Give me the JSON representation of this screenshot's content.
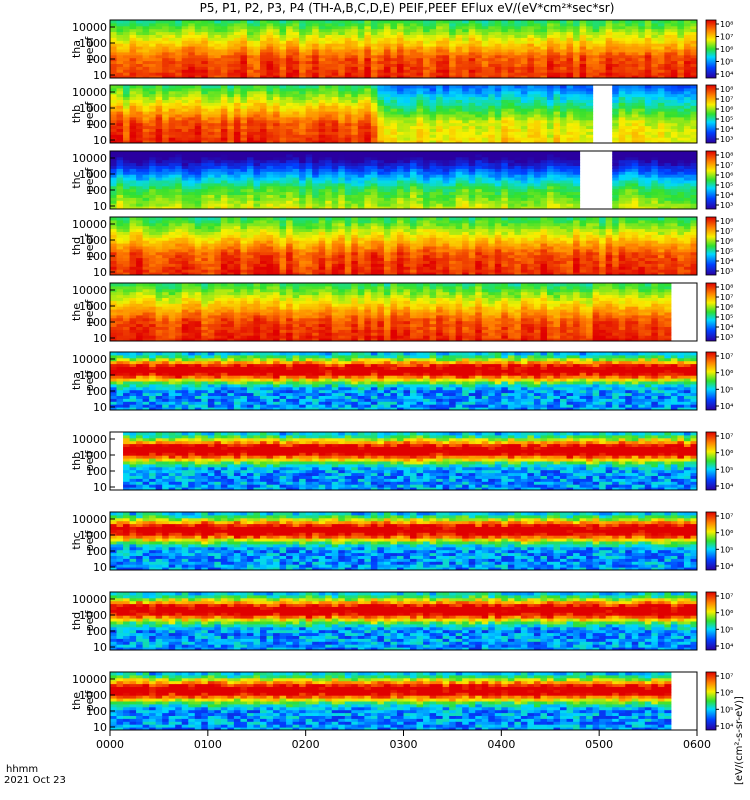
{
  "chart_data": {
    "type": "heatmap",
    "title": "P5, P1, P2, P3, P4 (TH-A,B,C,D,E) PEIF,PEEF EFlux eV/(eV*cm²*sec*sr)",
    "xlabel_top": "hhmm",
    "xlabel_bottom": "2021 Oct 23",
    "x_ticks": [
      "0000",
      "0100",
      "0200",
      "0300",
      "0400",
      "0500",
      "0600"
    ],
    "y_ticks": [
      "10",
      "100",
      "1000",
      "10000"
    ],
    "y_scale": "log",
    "ylim": [
      10,
      20000
    ],
    "xlim": [
      "0000",
      "0600"
    ],
    "colorbar_label": "[eV/(cm²-s-sr-eV)]",
    "colorbar_ticks": [
      "10⁴",
      "10⁵",
      "10⁶",
      "10⁷",
      "10⁸"
    ],
    "panels": [
      {
        "probe": "tha",
        "species": "peef",
        "colorbar": [
          "10⁴",
          "10⁵",
          "10⁶",
          "10⁷",
          "10⁸"
        ]
      },
      {
        "probe": "thb",
        "species": "peef",
        "colorbar": [
          "10³",
          "10⁴",
          "10⁵",
          "10⁶",
          "10⁷",
          "10⁸"
        ]
      },
      {
        "probe": "thc",
        "species": "peef",
        "colorbar": [
          "10³",
          "10⁴",
          "10⁵",
          "10⁶",
          "10⁷",
          "10⁸"
        ]
      },
      {
        "probe": "thd",
        "species": "peef",
        "colorbar": [
          "10³",
          "10⁴",
          "10⁵",
          "10⁶",
          "10⁷",
          "10⁸"
        ]
      },
      {
        "probe": "the",
        "species": "peef",
        "colorbar": [
          "10³",
          "10⁴",
          "10⁵",
          "10⁶",
          "10⁷",
          "10⁸"
        ]
      },
      {
        "probe": "tha",
        "species": "peif",
        "colorbar": [
          "10⁴",
          "10⁵",
          "10⁶",
          "10⁷"
        ]
      },
      {
        "probe": "thb",
        "species": "peif",
        "colorbar": [
          "10⁴",
          "10⁵",
          "10⁶",
          "10⁷"
        ]
      },
      {
        "probe": "thc",
        "species": "peif",
        "colorbar": [
          "10⁴",
          "10⁵",
          "10⁶",
          "10⁷"
        ]
      },
      {
        "probe": "thd",
        "species": "peif",
        "colorbar": [
          "10⁴",
          "10⁵",
          "10⁶",
          "10⁷"
        ]
      },
      {
        "probe": "the",
        "species": "peif",
        "colorbar": [
          "10⁴",
          "10⁵",
          "10⁶",
          "10⁷"
        ]
      }
    ]
  }
}
